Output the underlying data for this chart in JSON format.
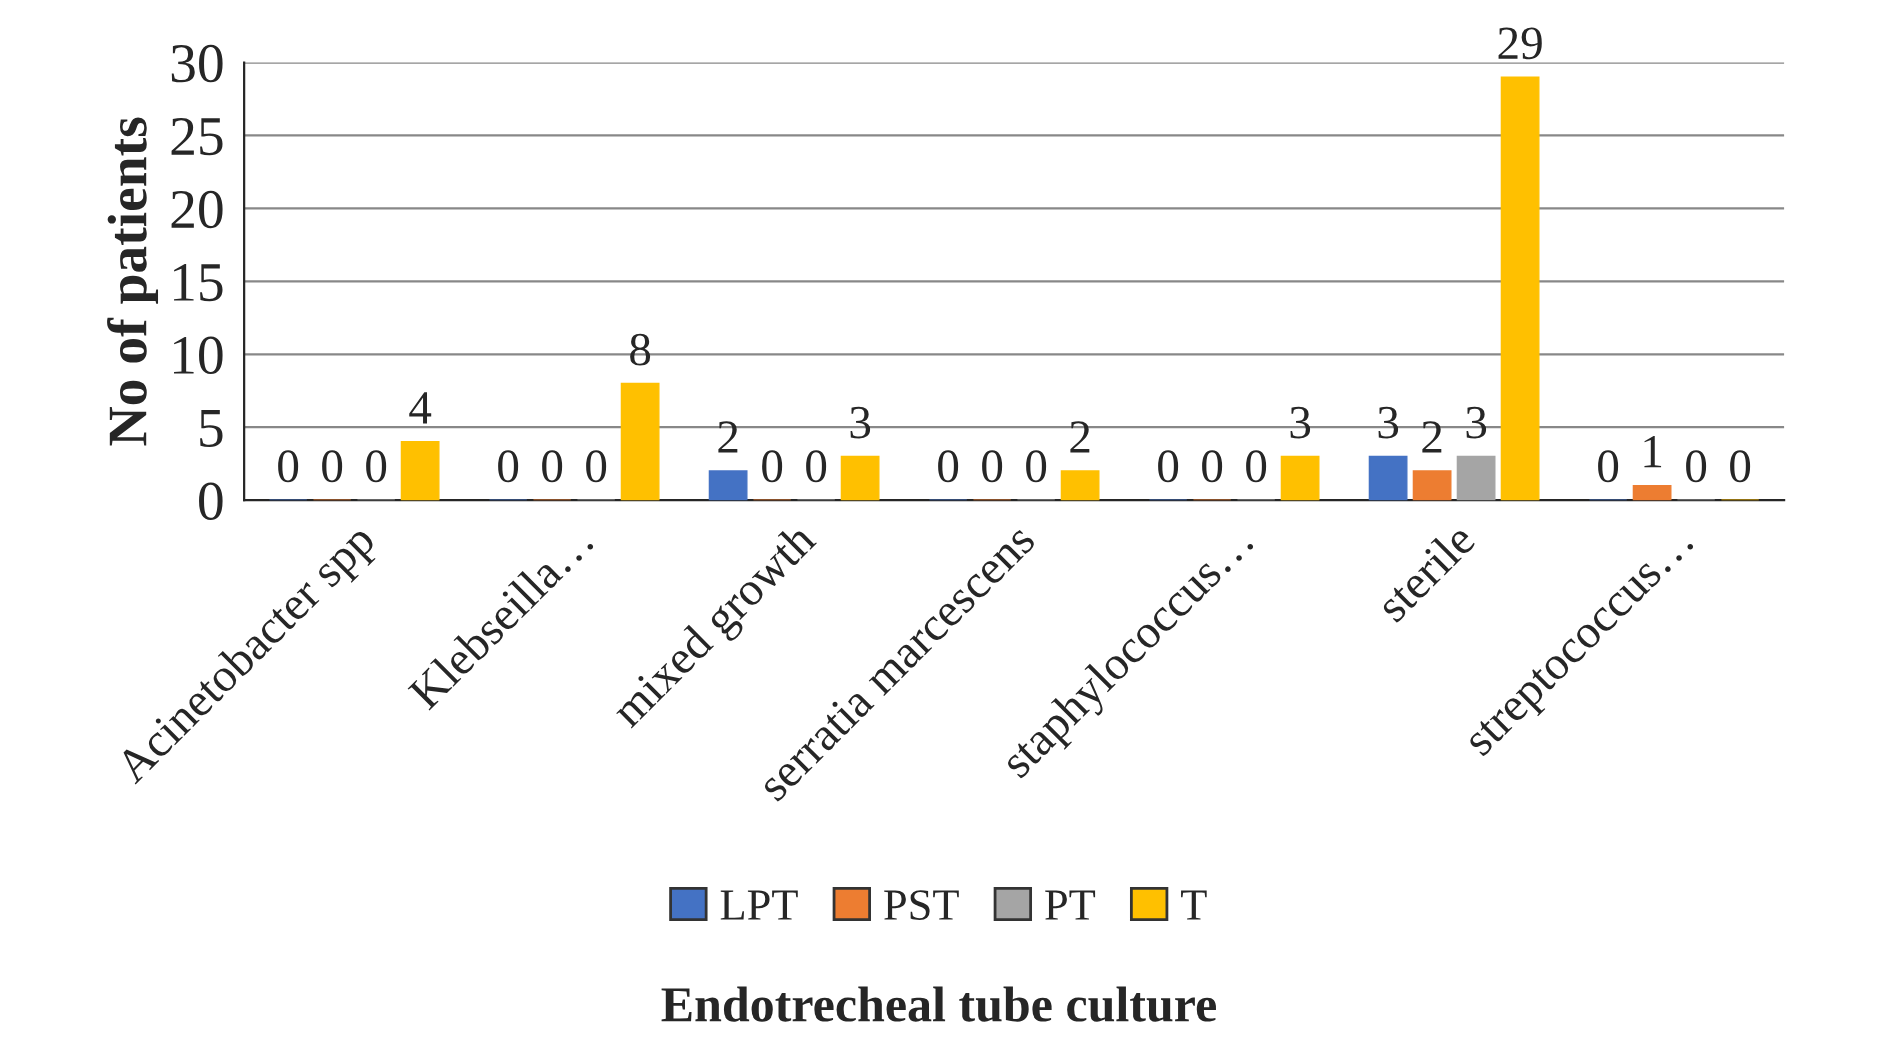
{
  "chart_data": {
    "type": "bar",
    "xlabel": "Endotrecheal tube culture",
    "ylabel": "No of patients",
    "categories": [
      "Acinetobacter spp",
      "Klebseilla…",
      "mixed growth",
      "serratia marcescens",
      "staphylococcus…",
      "sterile",
      "streptococcus…"
    ],
    "series": [
      {
        "name": "LPT",
        "color": "#4472c4",
        "values": [
          0,
          0,
          2,
          0,
          0,
          3,
          0
        ]
      },
      {
        "name": "PST",
        "color": "#ed7d31",
        "values": [
          0,
          0,
          0,
          0,
          0,
          2,
          1
        ]
      },
      {
        "name": "PT",
        "color": "#a5a5a5",
        "values": [
          0,
          0,
          0,
          0,
          0,
          3,
          0
        ]
      },
      {
        "name": "T",
        "color": "#ffc000",
        "values": [
          4,
          8,
          3,
          2,
          3,
          29,
          0
        ]
      }
    ],
    "ylim": [
      0,
      30
    ],
    "yticks": [
      0,
      5,
      10,
      15,
      20,
      25,
      30
    ],
    "grid": "y",
    "legend": "bottom",
    "data_labels": true
  }
}
